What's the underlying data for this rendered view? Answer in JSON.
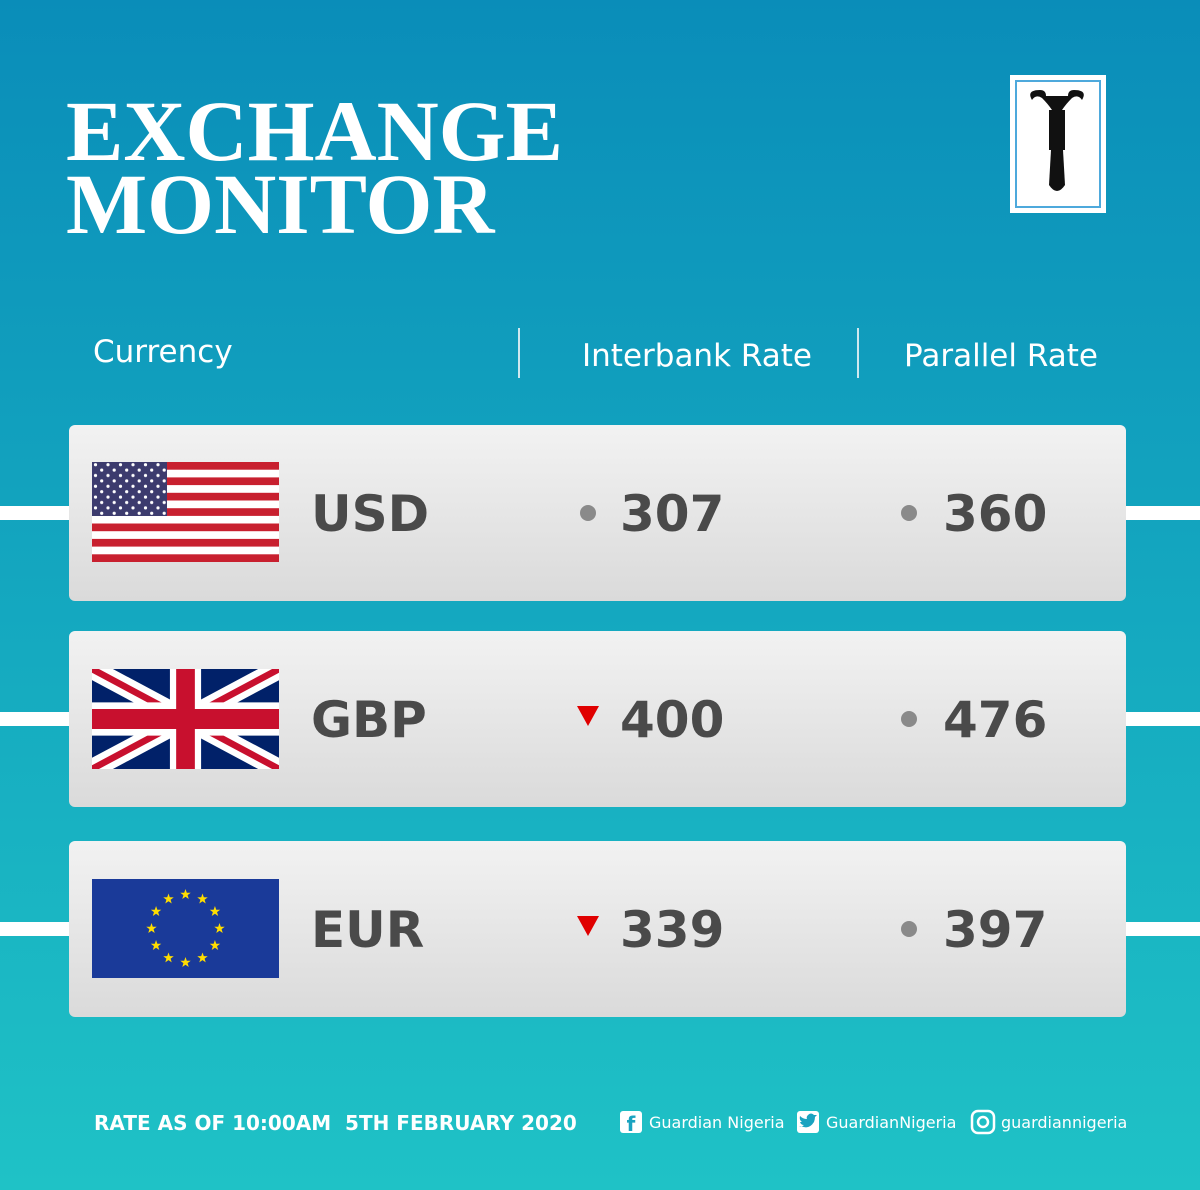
{
  "header": {
    "title_lines": [
      "EXCHANGE",
      "MONITOR"
    ]
  },
  "table": {
    "columns": [
      "Currency",
      "Interbank Rate",
      "Parallel Rate"
    ],
    "rows": [
      {
        "currency": "USD",
        "interbank": 307,
        "interbank_trend": "steady",
        "parallel": 360,
        "parallel_trend": "steady"
      },
      {
        "currency": "GBP",
        "interbank": 400,
        "interbank_trend": "down",
        "parallel": 476,
        "parallel_trend": "steady"
      },
      {
        "currency": "EUR",
        "interbank": 339,
        "interbank_trend": "down",
        "parallel": 397,
        "parallel_trend": "steady"
      }
    ]
  },
  "footer": {
    "note": "RATE AS OF 10:00AM  5TH FEBRUARY 2020",
    "socials": [
      "Guardian Nigeria",
      "GuardianNigeria",
      "guardiannigeria"
    ]
  }
}
